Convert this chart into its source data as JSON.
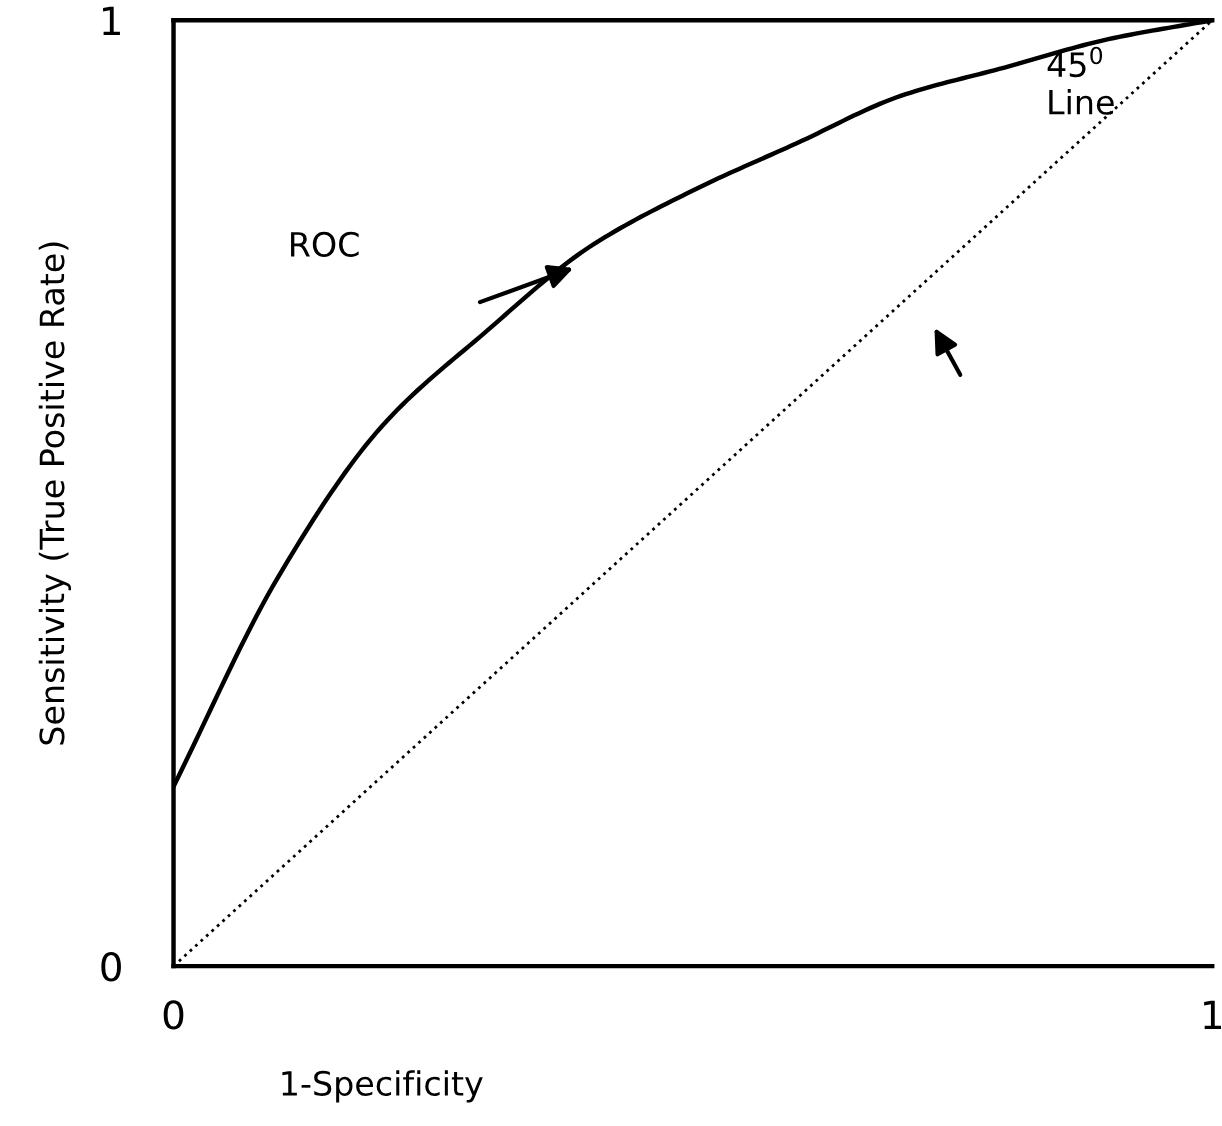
{
  "chart_data": {
    "type": "line",
    "xlabel": "1-Specificity",
    "ylabel": "Sensitivity (True Positive Rate)",
    "xlim": [
      0,
      1
    ],
    "ylim": [
      0,
      1
    ],
    "xticks": [
      0,
      1
    ],
    "yticks": [
      0,
      1
    ],
    "grid": false,
    "legend": false,
    "series": [
      {
        "color": "#000000",
        "line_style": "solid",
        "x": [
          0,
          0.1,
          0.2,
          0.3,
          0.4,
          0.5,
          0.6,
          0.7,
          0.8,
          0.9,
          1.0
        ],
        "values": [
          0.19,
          0.41,
          0.57,
          0.67,
          0.76,
          0.82,
          0.87,
          0.92,
          0.95,
          0.98,
          1.0
        ]
      },
      {
        "color": "#000000",
        "line_style": "dotted",
        "x": [
          0,
          1
        ],
        "values": [
          0,
          1
        ]
      }
    ],
    "annotations": [
      "ROC",
      "45$^{0}$\nLine"
    ]
  }
}
